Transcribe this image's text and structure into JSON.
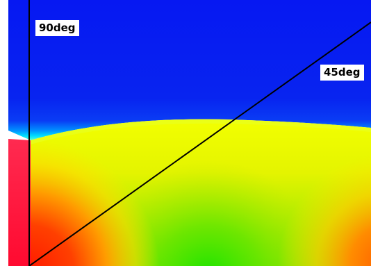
{
  "labels": {
    "vertical_line": "90deg",
    "diagonal_line": "45deg"
  },
  "colors": {
    "upper_region": "#0a1ff0",
    "hot": "#ff1a3c",
    "red": "#ff2a00",
    "orange": "#ff8a00",
    "yellow": "#f0f000",
    "yellow_green": "#b8ea00",
    "green": "#22e600",
    "cyan": "#00e8ff",
    "line": "#000000",
    "label_background": "#ffffff"
  }
}
